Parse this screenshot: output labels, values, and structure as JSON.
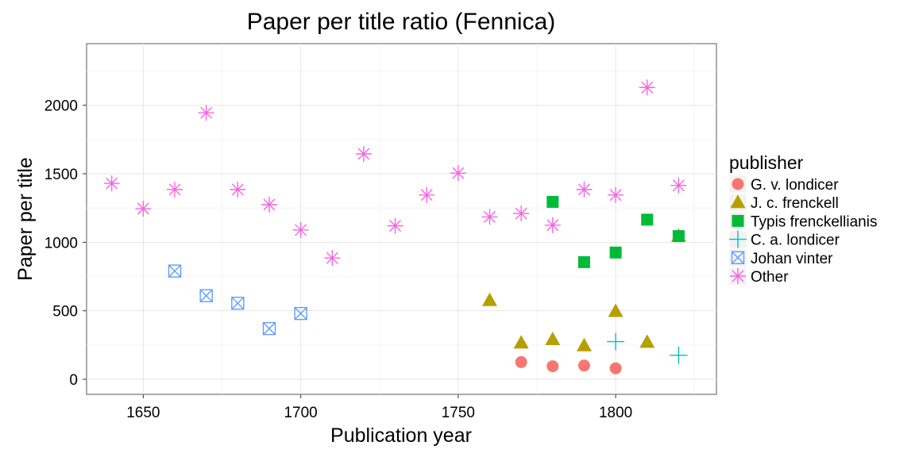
{
  "chart_data": {
    "type": "scatter",
    "title": "Paper per title ratio (Fennica)",
    "xlabel": "Publication year",
    "ylabel": "Paper per title",
    "xlim": [
      1632,
      1832
    ],
    "ylim": [
      -110,
      2450
    ],
    "x_ticks": [
      1650,
      1700,
      1750,
      1800
    ],
    "x_tick_labels": [
      "1650",
      "1700",
      "1750",
      "1800"
    ],
    "x_minor_ticks": [
      1675,
      1725,
      1775,
      1825
    ],
    "y_ticks": [
      0,
      500,
      1000,
      1500,
      2000
    ],
    "y_tick_labels": [
      "0",
      "500",
      "1000",
      "1500",
      "2000"
    ],
    "y_minor_ticks": [
      250,
      750,
      1250,
      1750,
      2250
    ],
    "grid": true,
    "legend_title": "publisher",
    "legend_position": "right",
    "series": [
      {
        "name": "G. v. londicer",
        "color": "#F8766D",
        "shape": "circle",
        "points": [
          [
            1770,
            125
          ],
          [
            1780,
            95
          ],
          [
            1790,
            100
          ],
          [
            1800,
            80
          ]
        ]
      },
      {
        "name": "J. c. frenckell",
        "color": "#B79F00",
        "shape": "triangle",
        "points": [
          [
            1760,
            575
          ],
          [
            1770,
            265
          ],
          [
            1780,
            290
          ],
          [
            1790,
            245
          ],
          [
            1800,
            495
          ],
          [
            1810,
            270
          ],
          [
            1820,
            1045
          ]
        ]
      },
      {
        "name": "Typis frenckellianis",
        "color": "#00BA38",
        "shape": "square",
        "points": [
          [
            1780,
            1295
          ],
          [
            1790,
            855
          ],
          [
            1800,
            925
          ],
          [
            1810,
            1165
          ],
          [
            1820,
            1045
          ]
        ]
      },
      {
        "name": "C. a. londicer",
        "color": "#00BFC4",
        "shape": "plus",
        "points": [
          [
            1800,
            275
          ],
          [
            1820,
            175
          ]
        ]
      },
      {
        "name": "Johan vinter",
        "color": "#619CFF",
        "shape": "boxcross",
        "points": [
          [
            1660,
            790
          ],
          [
            1670,
            610
          ],
          [
            1680,
            555
          ],
          [
            1690,
            370
          ],
          [
            1700,
            480
          ]
        ]
      },
      {
        "name": "Other",
        "color": "#F564E3",
        "shape": "asterisk",
        "points": [
          [
            1640,
            1430
          ],
          [
            1650,
            1245
          ],
          [
            1660,
            1385
          ],
          [
            1670,
            1945
          ],
          [
            1680,
            1385
          ],
          [
            1690,
            1275
          ],
          [
            1700,
            1090
          ],
          [
            1710,
            885
          ],
          [
            1720,
            1645
          ],
          [
            1730,
            1120
          ],
          [
            1740,
            1345
          ],
          [
            1750,
            1505
          ],
          [
            1760,
            1185
          ],
          [
            1770,
            1210
          ],
          [
            1780,
            1125
          ],
          [
            1790,
            1385
          ],
          [
            1800,
            1345
          ],
          [
            1810,
            2130
          ],
          [
            1820,
            1415
          ]
        ]
      }
    ]
  }
}
